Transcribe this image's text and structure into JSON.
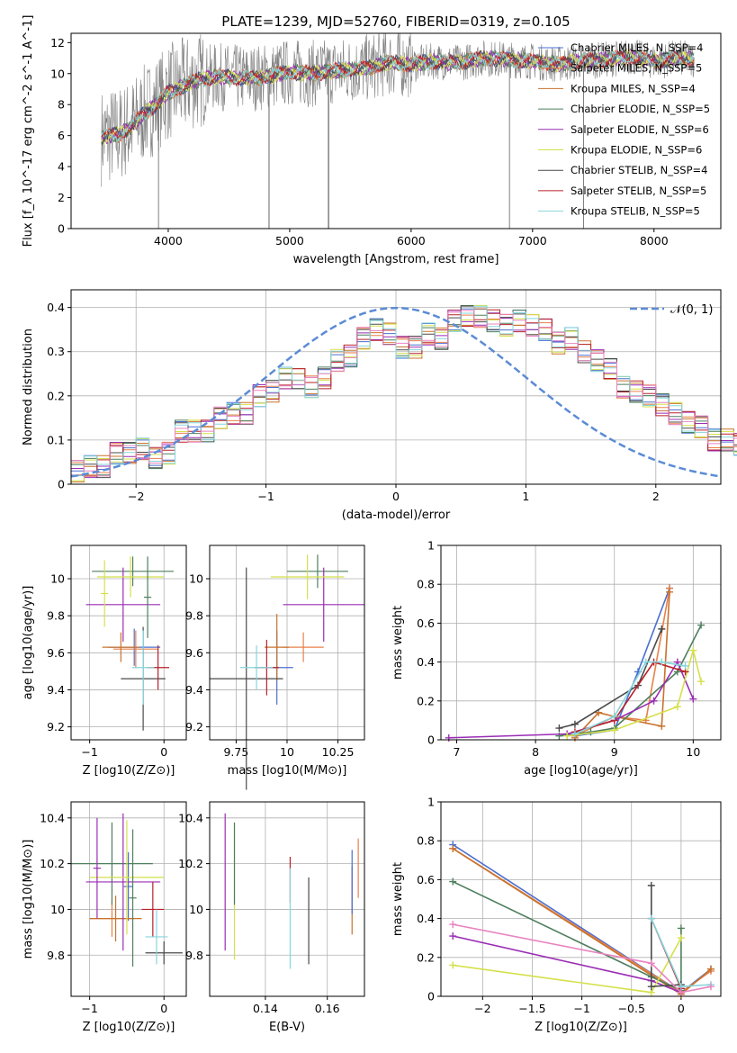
{
  "title": "PLATE=1239, MJD=52760, FIBERID=0319, z=0.105",
  "models": [
    {
      "label": "Chabrier MILES, N_SSP=4",
      "color": "#4a6fd1"
    },
    {
      "label": "Salpeter MILES, N_SSP=5",
      "color": "#e8804a"
    },
    {
      "label": "Kroupa MILES, N_SSP=4",
      "color": "#c8732e"
    },
    {
      "label": "Chabrier ELODIE, N_SSP=5",
      "color": "#4e7f5e"
    },
    {
      "label": "Salpeter ELODIE, N_SSP=6",
      "color": "#9a2db5"
    },
    {
      "label": "Kroupa ELODIE, N_SSP=6",
      "color": "#d4e04a"
    },
    {
      "label": "Chabrier STELIB, N_SSP=4",
      "color": "#4a4a4a"
    },
    {
      "label": "Salpeter STELIB, N_SSP=5",
      "color": "#b8202a"
    },
    {
      "label": "Kroupa STELIB, N_SSP=5",
      "color": "#86d5dc"
    }
  ],
  "chart_data": [
    {
      "type": "line",
      "id": "spectrum",
      "xlabel": "wavelength [Angstrom, rest frame]",
      "ylabel": "Flux [f_λ 10^-17 erg cm^-2 s^-1 A^-1]",
      "xlim": [
        3200,
        8550
      ],
      "ylim": [
        0,
        12.6
      ],
      "xticks": [
        4000,
        5000,
        6000,
        7000,
        8000
      ],
      "yticks": [
        0,
        2,
        4,
        6,
        8,
        10,
        12
      ],
      "grid": false,
      "legend": "right",
      "continuum": {
        "x": [
          3450,
          3600,
          3700,
          3800,
          3900,
          4000,
          4100,
          4200,
          4400,
          4600,
          4800,
          5000,
          5200,
          5400,
          5600,
          5800,
          6000,
          6200,
          6400,
          6600,
          6800,
          7000,
          7200,
          7400,
          7600,
          7800,
          8000,
          8200,
          8330
        ],
        "y": [
          5.9,
          6.1,
          6.6,
          7.4,
          8.0,
          8.8,
          9.1,
          9.5,
          9.8,
          9.7,
          9.8,
          10.1,
          10.0,
          10.2,
          10.3,
          10.7,
          10.6,
          10.8,
          10.7,
          11.0,
          10.9,
          10.8,
          10.6,
          10.8,
          10.9,
          11.1,
          10.8,
          11.0,
          10.9
        ]
      }
    },
    {
      "type": "bar",
      "id": "residuals",
      "xlabel": "(data-model)/error",
      "ylabel": "Normed distribution",
      "xlim": [
        -2.5,
        2.5
      ],
      "ylim": [
        0,
        0.44
      ],
      "xticks": [
        -2,
        -1,
        0,
        1,
        2
      ],
      "yticks": [
        0.0,
        0.1,
        0.2,
        0.3,
        0.4
      ],
      "grid": true,
      "legend": "top-right",
      "reference_label": "𝒩(0, 1)",
      "bin_width": 0.1,
      "bins_from": -2.5,
      "values": [
        0.03,
        0.04,
        0.04,
        0.07,
        0.07,
        0.08,
        0.06,
        0.07,
        0.12,
        0.12,
        0.12,
        0.15,
        0.16,
        0.16,
        0.2,
        0.21,
        0.24,
        0.24,
        0.22,
        0.24,
        0.28,
        0.29,
        0.33,
        0.35,
        0.34,
        0.31,
        0.31,
        0.34,
        0.33,
        0.37,
        0.38,
        0.38,
        0.37,
        0.36,
        0.37,
        0.36,
        0.35,
        0.32,
        0.33,
        0.3,
        0.28,
        0.26,
        0.22,
        0.21,
        0.2,
        0.18,
        0.16,
        0.14,
        0.13,
        0.1,
        0.1,
        0.09,
        0.08,
        0.08,
        0.07,
        0.06,
        0.05,
        0.05,
        0.04,
        0.04
      ]
    },
    {
      "type": "scatter",
      "id": "Z-age",
      "xlabel": "Z [log10(Z/Z⊙)]",
      "ylabel": "age  [log10(age/yr)]",
      "xlim": [
        -1.25,
        0.3
      ],
      "ylim": [
        9.13,
        10.18
      ],
      "xticks": [
        -1,
        0
      ],
      "yticks": [
        9.2,
        9.4,
        9.6,
        9.8,
        10.0
      ],
      "grid": true,
      "points": [
        {
          "series": "Chabrier MILES",
          "x": -0.4,
          "xerr": 0.35,
          "y": 9.63,
          "yerr": 0.1
        },
        {
          "series": "Salpeter MILES",
          "x": -0.38,
          "xerr": 0.3,
          "y": 9.62,
          "yerr": 0.1
        },
        {
          "series": "Kroupa MILES",
          "x": -0.58,
          "xerr": 0.25,
          "y": 9.63,
          "yerr": 0.08
        },
        {
          "series": "Chabrier ELODIE",
          "x": -0.42,
          "xerr": 0.55,
          "y": 10.04,
          "yerr": 0.08
        },
        {
          "series": "Salpeter ELODIE",
          "x": -0.55,
          "xerr": 0.5,
          "y": 9.86,
          "yerr": 0.2
        },
        {
          "series": "Kroupa ELODIE",
          "x": -0.45,
          "xerr": 0.45,
          "y": 10.01,
          "yerr": 0.11
        },
        {
          "series": "Chabrier STELIB",
          "x": -0.28,
          "xerr": 0.3,
          "y": 9.46,
          "yerr": 0.28
        },
        {
          "series": "Salpeter STELIB",
          "x": -0.08,
          "xerr": 0.15,
          "y": 9.52,
          "yerr": 0.12
        },
        {
          "series": "Kroupa STELIB",
          "x": -0.28,
          "xerr": 0.15,
          "y": 9.52,
          "yerr": 0.2
        },
        {
          "series": "Chabrier ELODIE",
          "x": -0.22,
          "xerr": 0.05,
          "y": 9.9,
          "yerr": 0.22
        },
        {
          "series": "Kroupa ELODIE",
          "x": -0.8,
          "xerr": 0.05,
          "y": 9.92,
          "yerr": 0.18
        }
      ]
    },
    {
      "type": "scatter",
      "id": "mass-age",
      "xlabel": "mass [log10(M/M⊙)]",
      "ylabel": "",
      "xlim": [
        9.62,
        10.38
      ],
      "ylim": [
        9.13,
        10.18
      ],
      "xticks": [
        9.75,
        10.0,
        10.25
      ],
      "yticks": [
        9.2,
        9.4,
        9.6,
        9.8,
        10.0
      ],
      "grid": true,
      "points": [
        {
          "series": "Chabrier MILES",
          "x": 9.95,
          "xerr": 0.08,
          "y": 9.52,
          "yerr": 0.2
        },
        {
          "series": "Salpeter MILES",
          "x": 10.08,
          "xerr": 0.1,
          "y": 9.63,
          "yerr": 0.08
        },
        {
          "series": "Kroupa MILES",
          "x": 9.95,
          "xerr": 0.06,
          "y": 9.63,
          "yerr": 0.18
        },
        {
          "series": "Chabrier ELODIE",
          "x": 10.15,
          "xerr": 0.15,
          "y": 10.04,
          "yerr": 0.09
        },
        {
          "series": "Salpeter ELODIE",
          "x": 10.18,
          "xerr": 0.2,
          "y": 9.86,
          "yerr": 0.2
        },
        {
          "series": "Kroupa ELODIE",
          "x": 10.1,
          "xerr": 0.18,
          "y": 10.01,
          "yerr": 0.12
        },
        {
          "series": "Chabrier STELIB",
          "x": 9.8,
          "xerr": 0.18,
          "y": 9.46,
          "yerr": 0.6
        },
        {
          "series": "Salpeter STELIB",
          "x": 9.9,
          "xerr": 0.06,
          "y": 9.52,
          "yerr": 0.15
        },
        {
          "series": "Kroupa STELIB",
          "x": 9.85,
          "xerr": 0.08,
          "y": 9.52,
          "yerr": 0.12
        }
      ]
    },
    {
      "type": "line",
      "id": "age-weight",
      "xlabel": "age  [log10(age/yr)]",
      "ylabel": "mass weight",
      "xlim": [
        6.8,
        10.35
      ],
      "ylim": [
        0,
        1.0
      ],
      "xticks": [
        7,
        8,
        9,
        10
      ],
      "yticks": [
        0.0,
        0.2,
        0.4,
        0.6,
        0.8,
        1.0
      ],
      "grid": true,
      "series": [
        {
          "name": "Chabrier MILES",
          "x": [
            8.5,
            9.0,
            9.3,
            9.7
          ],
          "y": [
            0.02,
            0.05,
            0.35,
            0.78
          ]
        },
        {
          "name": "Salpeter MILES",
          "x": [
            8.5,
            9.0,
            9.4,
            9.7
          ],
          "y": [
            0.02,
            0.12,
            0.1,
            0.78
          ]
        },
        {
          "name": "Kroupa MILES",
          "x": [
            8.5,
            8.8,
            9.0,
            9.6,
            9.7
          ],
          "y": [
            0.01,
            0.14,
            0.12,
            0.07,
            0.76
          ]
        },
        {
          "name": "Chabrier ELODIE",
          "x": [
            8.3,
            8.7,
            9.0,
            9.8,
            10.1
          ],
          "y": [
            0.02,
            0.04,
            0.06,
            0.35,
            0.59
          ]
        },
        {
          "name": "Salpeter ELODIE",
          "x": [
            6.9,
            8.4,
            9.0,
            9.5,
            9.8,
            10.0
          ],
          "y": [
            0.01,
            0.03,
            0.1,
            0.2,
            0.4,
            0.21
          ]
        },
        {
          "name": "Kroupa ELODIE",
          "x": [
            8.4,
            9.0,
            9.8,
            10.0,
            10.1
          ],
          "y": [
            0.02,
            0.05,
            0.17,
            0.46,
            0.3
          ]
        },
        {
          "name": "Chabrier STELIB",
          "x": [
            8.3,
            8.5,
            9.3,
            9.6
          ],
          "y": [
            0.06,
            0.08,
            0.28,
            0.57
          ]
        },
        {
          "name": "Salpeter STELIB",
          "x": [
            8.5,
            9.0,
            9.5,
            9.9
          ],
          "y": [
            0.04,
            0.1,
            0.4,
            0.35
          ]
        },
        {
          "name": "Kroupa STELIB",
          "x": [
            8.5,
            9.0,
            9.4,
            9.6,
            9.9
          ],
          "y": [
            0.03,
            0.12,
            0.4,
            0.4,
            0.38
          ]
        }
      ]
    },
    {
      "type": "scatter",
      "id": "Z-mass",
      "xlabel": "Z [log10(Z/Z⊙)]",
      "ylabel": "mass [log10(M/M⊙)]",
      "xlim": [
        -1.25,
        0.3
      ],
      "ylim": [
        9.62,
        10.47
      ],
      "xticks": [
        -1,
        0
      ],
      "yticks": [
        9.8,
        10.0,
        10.2,
        10.4
      ],
      "grid": true,
      "points": [
        {
          "series": "Chabrier MILES",
          "x": -0.48,
          "xerr": 0.06,
          "y": 10.1,
          "yerr": 0.15
        },
        {
          "series": "Salpeter MILES",
          "x": -0.7,
          "xerr": 0.3,
          "y": 9.96,
          "yerr": 0.08
        },
        {
          "series": "Kroupa MILES",
          "x": -0.65,
          "xerr": 0.35,
          "y": 9.96,
          "yerr": 0.1
        },
        {
          "series": "Chabrier ELODIE",
          "x": -0.7,
          "xerr": 0.55,
          "y": 10.2,
          "yerr": 0.18
        },
        {
          "series": "Salpeter ELODIE",
          "x": -0.55,
          "xerr": 0.5,
          "y": 10.12,
          "yerr": 0.3
        },
        {
          "series": "Kroupa ELODIE",
          "x": -0.5,
          "xerr": 0.5,
          "y": 10.14,
          "yerr": 0.25
        },
        {
          "series": "Chabrier STELIB",
          "x": 0.0,
          "xerr": 0.25,
          "y": 9.81,
          "yerr": 0.05
        },
        {
          "series": "Salpeter STELIB",
          "x": -0.15,
          "xerr": 0.15,
          "y": 10.0,
          "yerr": 0.12
        },
        {
          "series": "Kroupa STELIB",
          "x": -0.1,
          "xerr": 0.15,
          "y": 9.88,
          "yerr": 0.12
        },
        {
          "series": "Chabrier ELODIE",
          "x": -0.42,
          "xerr": 0.05,
          "y": 10.05,
          "yerr": 0.3
        },
        {
          "series": "Salpeter ELODIE",
          "x": -0.9,
          "xerr": 0.05,
          "y": 10.18,
          "yerr": 0.22
        }
      ]
    },
    {
      "type": "scatter",
      "id": "EBV-mass",
      "xlabel": "E(B-V)",
      "ylabel": "",
      "xlim": [
        0.122,
        0.172
      ],
      "ylim": [
        9.62,
        10.47
      ],
      "xticks": [
        0.14,
        0.16
      ],
      "yticks": [
        9.8,
        10.0,
        10.2,
        10.4
      ],
      "grid": true,
      "points": [
        {
          "series": "Salpeter ELODIE",
          "x": 0.127,
          "xerr": 0.0,
          "y": 10.12,
          "yerr": 0.3
        },
        {
          "series": "Kroupa ELODIE",
          "x": 0.13,
          "xerr": 0.0,
          "y": 10.08,
          "yerr": 0.3
        },
        {
          "series": "Chabrier ELODIE",
          "x": 0.13,
          "xerr": 0.0,
          "y": 10.2,
          "yerr": 0.18
        },
        {
          "series": "Salpeter STELIB",
          "x": 0.148,
          "xerr": 0.0,
          "y": 10.13,
          "yerr": 0.1
        },
        {
          "series": "Kroupa STELIB",
          "x": 0.148,
          "xerr": 0.0,
          "y": 9.96,
          "yerr": 0.22
        },
        {
          "series": "Chabrier STELIB",
          "x": 0.154,
          "xerr": 0.0,
          "y": 9.95,
          "yerr": 0.19
        },
        {
          "series": "Kroupa MILES",
          "x": 0.168,
          "xerr": 0.0,
          "y": 10.04,
          "yerr": 0.15
        },
        {
          "series": "Chabrier MILES",
          "x": 0.168,
          "xerr": 0.0,
          "y": 10.12,
          "yerr": 0.14
        },
        {
          "series": "Salpeter MILES",
          "x": 0.17,
          "xerr": 0.0,
          "y": 10.18,
          "yerr": 0.13
        }
      ]
    },
    {
      "type": "line",
      "id": "Z-weight",
      "xlabel": "Z [log10(Z/Z⊙)]",
      "ylabel": "mass weight",
      "xlim": [
        -2.42,
        0.4
      ],
      "ylim": [
        0,
        1.0
      ],
      "xticks": [
        -2.0,
        -1.5,
        -1.0,
        -0.5,
        0.0
      ],
      "yticks": [
        0.0,
        0.2,
        0.4,
        0.6,
        0.8,
        1.0
      ],
      "grid": true,
      "series": [
        {
          "name": "Chabrier MILES",
          "x": [
            -2.3,
            0.0,
            0.3
          ],
          "y": [
            0.78,
            0.02,
            0.14
          ]
        },
        {
          "name": "Salpeter MILES",
          "x": [
            -2.3,
            0.0,
            0.3
          ],
          "y": [
            0.76,
            0.02,
            0.13
          ]
        },
        {
          "name": "Kroupa MILES",
          "x": [
            -2.3,
            0.0,
            0.3
          ],
          "y": [
            0.76,
            0.01,
            0.14
          ]
        },
        {
          "name": "Chabrier ELODIE",
          "x": [
            -2.3,
            -0.3,
            0.0,
            0.0
          ],
          "y": [
            0.59,
            0.1,
            0.03,
            0.35
          ]
        },
        {
          "name": "Salpeter ELODIE",
          "x": [
            -2.3,
            -0.3,
            0.0
          ],
          "y": [
            0.31,
            0.08,
            0.02
          ]
        },
        {
          "name": "Kroupa ELODIE",
          "x": [
            -2.3,
            -0.3,
            0.0
          ],
          "y": [
            0.16,
            0.02,
            0.3
          ]
        },
        {
          "name": "Chabrier STELIB",
          "x": [
            -0.3,
            -0.3,
            0.0
          ],
          "y": [
            0.57,
            0.05,
            0.06
          ]
        },
        {
          "name": "Salpeter STELIB",
          "x": [
            -0.3,
            0.0
          ],
          "y": [
            0.4,
            0.04
          ]
        },
        {
          "name": "Kroupa STELIB",
          "x": [
            -0.3,
            0.0,
            0.3
          ],
          "y": [
            0.4,
            0.05,
            0.06
          ]
        }
      ],
      "extra_series": [
        {
          "name": "pink",
          "color": "#e884c0",
          "x": [
            -2.3,
            -0.3,
            0.0,
            0.3
          ],
          "y": [
            0.37,
            0.17,
            0.02,
            0.05
          ]
        }
      ]
    }
  ]
}
